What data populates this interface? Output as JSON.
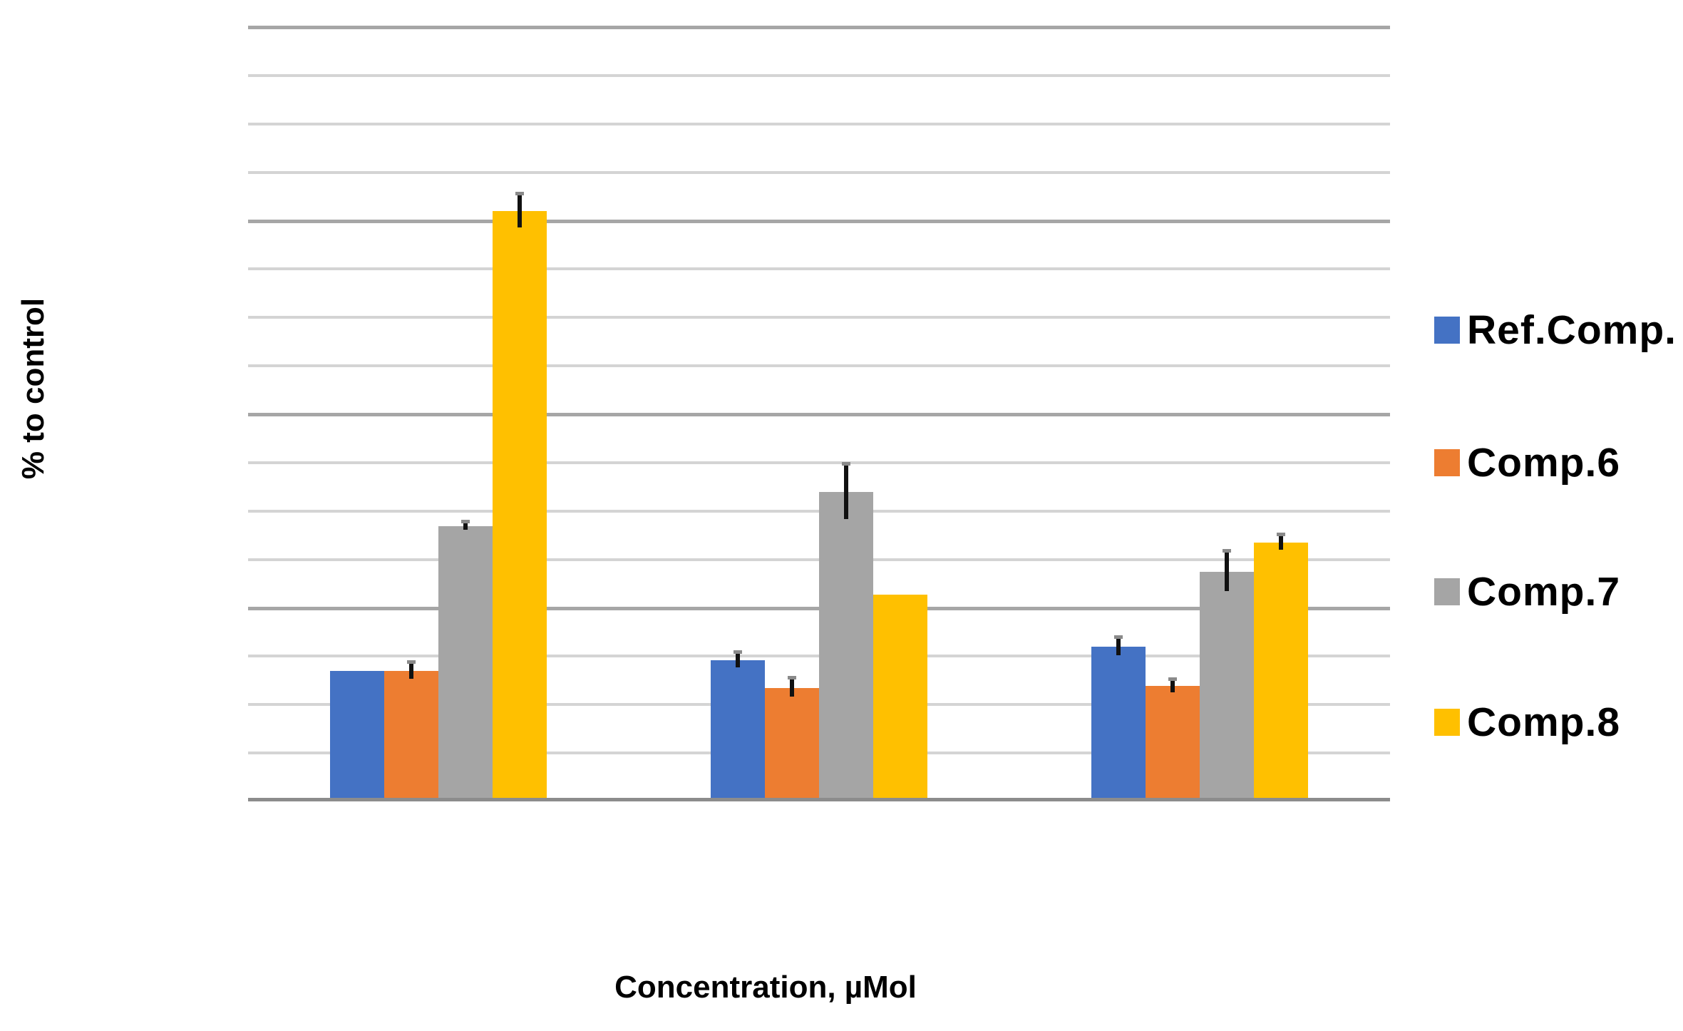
{
  "chart_data": {
    "type": "bar",
    "title": "",
    "xlabel": "Concentration, µMol",
    "ylabel": "% to control",
    "categories": [
      "",
      "",
      ""
    ],
    "series": [
      {
        "name": "Ref.Comp.",
        "color": "#4472C4",
        "values": [
          26.7,
          28.9,
          31.7
        ],
        "errors": [
          0,
          1.5,
          1.8
        ]
      },
      {
        "name": "Comp.6",
        "color": "#ED7D31",
        "values": [
          26.7,
          23.2,
          23.5
        ],
        "errors": [
          1.6,
          1.8,
          1.2
        ]
      },
      {
        "name": "Comp.7",
        "color": "#A5A5A5",
        "values": [
          56.6,
          63.7,
          47.2
        ],
        "errors": [
          0.7,
          5.6,
          4.1
        ]
      },
      {
        "name": "Comp.8",
        "color": "#FFC000",
        "values": [
          121.7,
          42.5,
          53.2
        ],
        "errors": [
          3.4,
          0,
          1.5
        ]
      }
    ],
    "ylim": [
      0,
      160
    ],
    "y_minor_gridline_unit": 10,
    "y_major_gridline_unit": 40,
    "axis_tick_labels_visible": false,
    "grid": "horizontal minor and major gridlines, no tick labels",
    "error_bars": true,
    "legend_position": "right",
    "colors": {
      "minor_gridline": "#D4D4D4",
      "major_gridline": "#A6A6A6",
      "axis_line": "#8C8C8C",
      "text": "#000000",
      "background": "#FFFFFF"
    }
  }
}
